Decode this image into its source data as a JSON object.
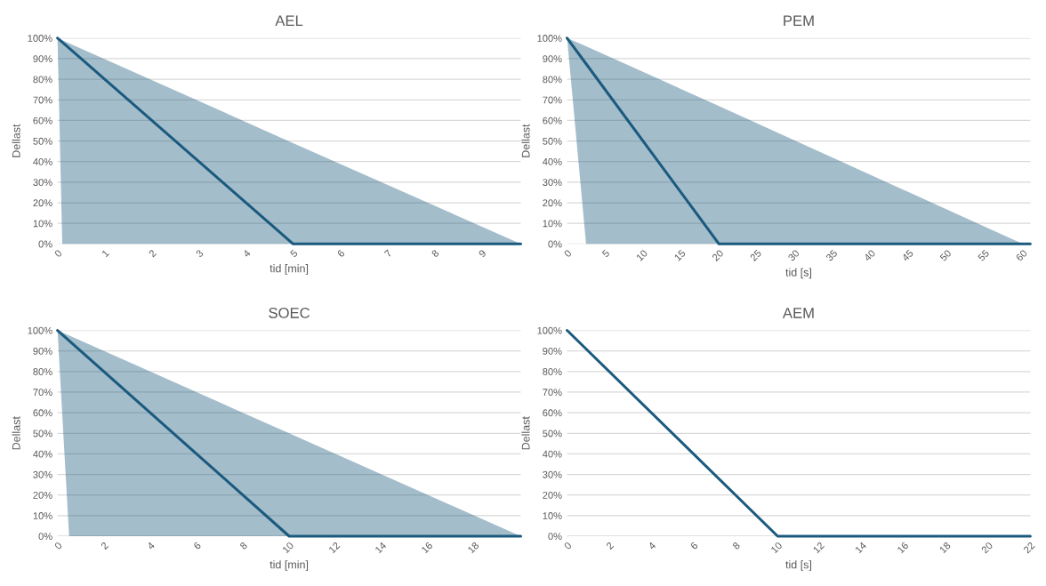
{
  "chart_data": [
    {
      "type": "line",
      "title": "AEL",
      "xlabel": "tid [min]",
      "ylabel": "Dellast",
      "grid": "y",
      "xlim": [
        0,
        9.83
      ],
      "xticks": [
        0,
        1,
        2,
        3,
        4,
        5,
        6,
        7,
        8,
        9
      ],
      "ylim": [
        0,
        100
      ],
      "yticks": [
        {
          "value": 0,
          "label": "0%"
        },
        {
          "value": 10,
          "label": "10%"
        },
        {
          "value": 20,
          "label": "20%"
        },
        {
          "value": 30,
          "label": "30%"
        },
        {
          "value": 40,
          "label": "40%"
        },
        {
          "value": 50,
          "label": "50%"
        },
        {
          "value": 60,
          "label": "60%"
        },
        {
          "value": 70,
          "label": "70%"
        },
        {
          "value": 80,
          "label": "80%"
        },
        {
          "value": 90,
          "label": "90%"
        },
        {
          "value": 100,
          "label": "100%"
        }
      ],
      "series": [
        {
          "type": "line",
          "color": "#1b5a7e",
          "x": [
            0,
            0.1,
            5,
            9.83
          ],
          "values": [
            100,
            98,
            0,
            0
          ],
          "upper": [
            100,
            99,
            49,
            0
          ],
          "lower": [
            100,
            0,
            0,
            0
          ]
        }
      ]
    },
    {
      "type": "line",
      "title": "PEM",
      "xlabel": "tid [s]",
      "ylabel": "Dellast",
      "grid": "y",
      "xlim": [
        0,
        61
      ],
      "xticks": [
        0,
        5,
        10,
        15,
        20,
        25,
        30,
        35,
        40,
        45,
        50,
        55,
        60
      ],
      "ylim": [
        0,
        100
      ],
      "yticks": [
        {
          "value": 0,
          "label": "0%"
        },
        {
          "value": 10,
          "label": "10%"
        },
        {
          "value": 20,
          "label": "20%"
        },
        {
          "value": 30,
          "label": "30%"
        },
        {
          "value": 40,
          "label": "40%"
        },
        {
          "value": 50,
          "label": "50%"
        },
        {
          "value": 60,
          "label": "60%"
        },
        {
          "value": 70,
          "label": "70%"
        },
        {
          "value": 80,
          "label": "80%"
        },
        {
          "value": 90,
          "label": "90%"
        },
        {
          "value": 100,
          "label": "100%"
        }
      ],
      "series": [
        {
          "type": "line",
          "color": "#1b5a7e",
          "x": [
            0,
            2.5,
            20,
            60,
            61
          ],
          "values": [
            100,
            87.5,
            0,
            0,
            0
          ],
          "upper": [
            100,
            96,
            67,
            0,
            null
          ],
          "lower": [
            100,
            0,
            0,
            0,
            null
          ]
        }
      ]
    },
    {
      "type": "line",
      "title": "SOEC",
      "xlabel": "tid [min]",
      "ylabel": "Dellast",
      "grid": "y",
      "xlim": [
        0,
        20
      ],
      "xticks": [
        0,
        2,
        4,
        6,
        8,
        10,
        12,
        14,
        16,
        18
      ],
      "ylim": [
        0,
        100
      ],
      "yticks": [
        {
          "value": 0,
          "label": "0%"
        },
        {
          "value": 10,
          "label": "10%"
        },
        {
          "value": 20,
          "label": "20%"
        },
        {
          "value": 30,
          "label": "30%"
        },
        {
          "value": 40,
          "label": "40%"
        },
        {
          "value": 50,
          "label": "50%"
        },
        {
          "value": 60,
          "label": "60%"
        },
        {
          "value": 70,
          "label": "70%"
        },
        {
          "value": 80,
          "label": "80%"
        },
        {
          "value": 90,
          "label": "90%"
        },
        {
          "value": 100,
          "label": "100%"
        }
      ],
      "series": [
        {
          "type": "line",
          "color": "#1b5a7e",
          "x": [
            0,
            0.5,
            10,
            20
          ],
          "values": [
            100,
            95,
            0,
            0
          ],
          "upper": [
            100,
            97.5,
            50,
            0
          ],
          "lower": [
            100,
            0,
            0,
            0
          ]
        }
      ]
    },
    {
      "type": "line",
      "title": "AEM",
      "xlabel": "tid [s]",
      "ylabel": "Dellast",
      "grid": "y",
      "xlim": [
        0,
        22
      ],
      "xticks": [
        0,
        2,
        4,
        6,
        8,
        10,
        12,
        14,
        16,
        18,
        20,
        22
      ],
      "ylim": [
        0,
        100
      ],
      "yticks": [
        {
          "value": 0,
          "label": "0%"
        },
        {
          "value": 10,
          "label": "10%"
        },
        {
          "value": 20,
          "label": "20%"
        },
        {
          "value": 30,
          "label": "30%"
        },
        {
          "value": 40,
          "label": "40%"
        },
        {
          "value": 50,
          "label": "50%"
        },
        {
          "value": 60,
          "label": "60%"
        },
        {
          "value": 70,
          "label": "70%"
        },
        {
          "value": 80,
          "label": "80%"
        },
        {
          "value": 90,
          "label": "90%"
        },
        {
          "value": 100,
          "label": "100%"
        }
      ],
      "series": [
        {
          "type": "line",
          "color": "#1b5a7e",
          "x": [
            0,
            10,
            22
          ],
          "values": [
            100,
            0,
            0
          ]
        }
      ]
    }
  ]
}
